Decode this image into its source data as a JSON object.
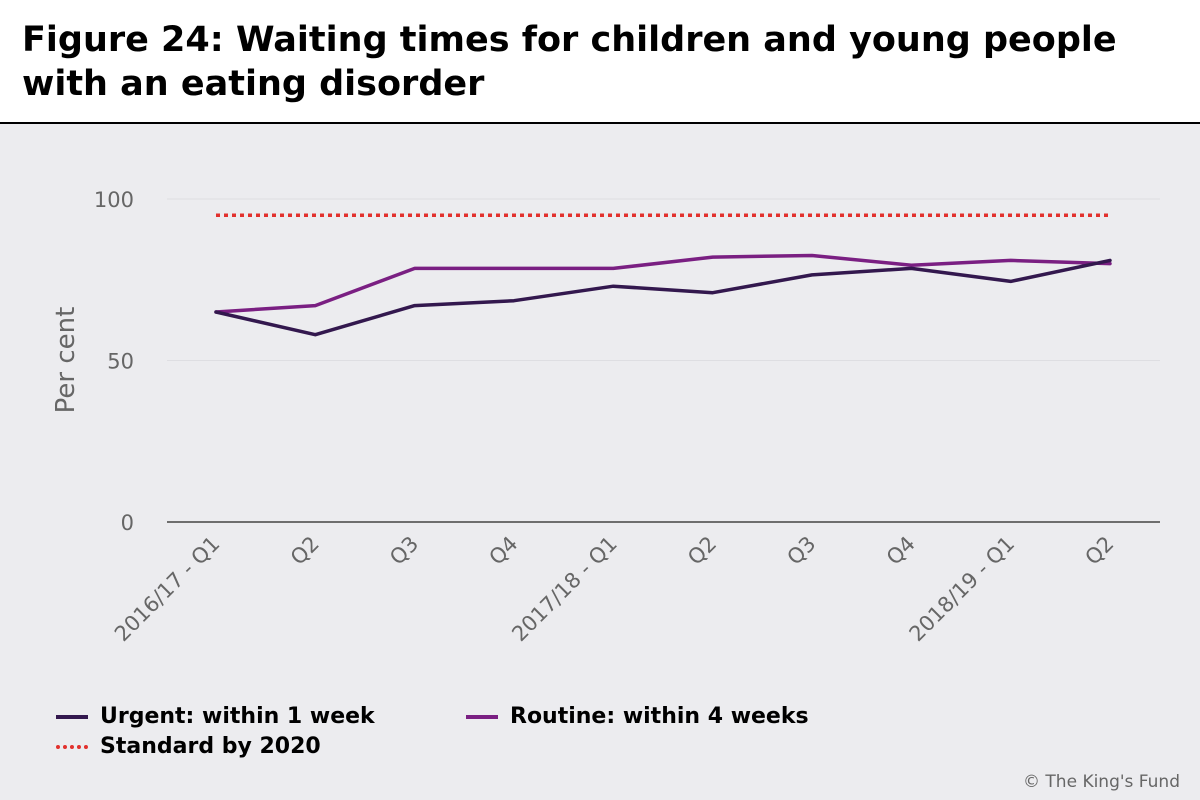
{
  "title": "Figure 24: Waiting times for children and young people with an eating disorder",
  "copyright": "© The King's Fund",
  "colors": {
    "urgent": "#33184e",
    "routine": "#7a1f82",
    "standard": "#e2312d",
    "grid": "#dedee2",
    "axis": "#444444",
    "tick_text": "#666666",
    "background": "#ececef"
  },
  "chart_data": {
    "type": "line",
    "ylabel": "Per cent",
    "xlabel": "",
    "ylim": [
      0,
      100
    ],
    "yticks": [
      0,
      50,
      100
    ],
    "grid": true,
    "legend_position": "bottom-left",
    "categories": [
      "2016/17 - Q1",
      "Q2",
      "Q3",
      "Q4",
      "2017/18 - Q1",
      "Q2",
      "Q3",
      "Q4",
      "2018/19 - Q1",
      "Q2"
    ],
    "series": [
      {
        "name": "Urgent: within 1 week",
        "color_key": "urgent",
        "style": "solid",
        "values": [
          65,
          58,
          67,
          68.5,
          73,
          71,
          76.5,
          78.5,
          74.5,
          81
        ]
      },
      {
        "name": "Routine: within 4 weeks",
        "color_key": "routine",
        "style": "solid",
        "values": [
          65,
          67,
          78.5,
          78.5,
          78.5,
          82,
          82.5,
          79.5,
          81,
          80
        ]
      },
      {
        "name": "Standard by 2020",
        "color_key": "standard",
        "style": "dotted",
        "values": [
          95,
          95,
          95,
          95,
          95,
          95,
          95,
          95,
          95,
          95
        ],
        "extend_full_width": true
      }
    ]
  }
}
